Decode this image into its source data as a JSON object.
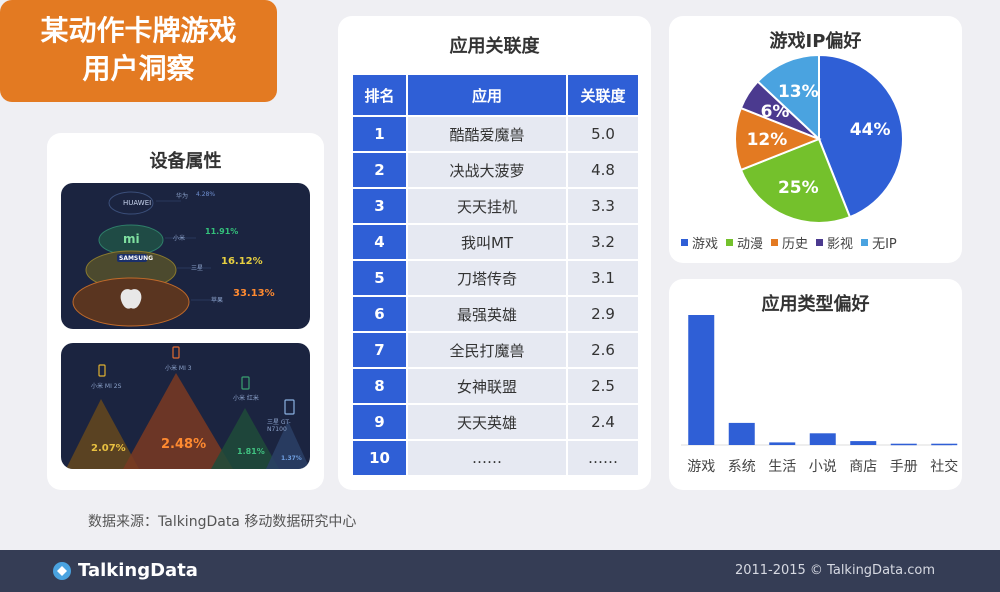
{
  "title": {
    "line1": "某动作卡牌游戏",
    "line2": "用户洞察"
  },
  "device": {
    "title": "设备属性",
    "brands": [
      {
        "name": "华为",
        "logo": "HUAWEI",
        "pct": "4.28%"
      },
      {
        "name": "小米",
        "logo": "mi",
        "pct": "11.91%"
      },
      {
        "name": "三星",
        "logo": "SAMSUNG",
        "pct": "16.12%"
      },
      {
        "name": "苹果",
        "logo": "apple",
        "pct": "33.13%"
      }
    ],
    "models": [
      {
        "name": "小米 MI 2S",
        "pct": "2.07%"
      },
      {
        "name": "小米 MI 3",
        "pct": "2.48%"
      },
      {
        "name": "小米 红米",
        "pct": "1.81%"
      },
      {
        "name": "三星 GT-N7100",
        "pct": "1.37%"
      }
    ]
  },
  "table": {
    "title": "应用关联度",
    "headers": [
      "排名",
      "应用",
      "关联度"
    ],
    "rows": [
      [
        "1",
        "酷酷爱魔兽",
        "5.0"
      ],
      [
        "2",
        "决战大菠萝",
        "4.8"
      ],
      [
        "3",
        "天天挂机",
        "3.3"
      ],
      [
        "4",
        "我叫MT",
        "3.2"
      ],
      [
        "5",
        "刀塔传奇",
        "3.1"
      ],
      [
        "6",
        "最强英雄",
        "2.9"
      ],
      [
        "7",
        "全民打魔兽",
        "2.6"
      ],
      [
        "8",
        "女神联盟",
        "2.5"
      ],
      [
        "9",
        "天天英雄",
        "2.4"
      ],
      [
        "10",
        "……",
        "……"
      ]
    ]
  },
  "source": "数据来源：TalkingData 移动数据研究中心",
  "footer": {
    "logo": "TalkingData",
    "copyright": "2011-2015 © TalkingData.com"
  },
  "chart_data": [
    {
      "type": "pie",
      "title": "游戏IP偏好",
      "categories": [
        "游戏",
        "动漫",
        "历史",
        "影视",
        "无IP"
      ],
      "values": [
        44,
        25,
        12,
        6,
        13
      ],
      "labels": [
        "44%",
        "25%",
        "12%",
        "6%",
        "13%"
      ],
      "colors": [
        "#2f5fd6",
        "#74c12c",
        "#e37a22",
        "#4b3a8f",
        "#4aa3e0"
      ],
      "legend": "bottom"
    },
    {
      "type": "bar",
      "title": "应用类型偏好",
      "categories": [
        "游戏",
        "系统",
        "生活",
        "小说",
        "商店",
        "手册",
        "社交"
      ],
      "values": [
        100,
        17,
        2,
        9,
        3,
        1,
        1
      ],
      "ylim": [
        0,
        100
      ],
      "color": "#2f5fd6"
    }
  ]
}
